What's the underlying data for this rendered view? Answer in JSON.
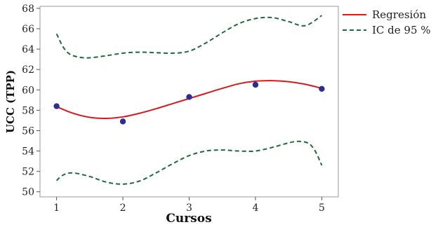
{
  "chart_data": {
    "type": "scatter",
    "xlabel": "Cursos",
    "ylabel": "UCC (TPP)",
    "xlim": [
      0.75,
      5.25
    ],
    "ylim": [
      49.5,
      68.2
    ],
    "xticks": [
      1,
      2,
      3,
      4,
      5
    ],
    "yticks": [
      50,
      52,
      54,
      56,
      58,
      60,
      62,
      64,
      66,
      68
    ],
    "grid": false,
    "legend_position": "right",
    "points": {
      "color": "#2b2e8f",
      "x": [
        1,
        2,
        3,
        4,
        5
      ],
      "y": [
        58.4,
        56.9,
        59.3,
        60.5,
        60.1
      ]
    },
    "series": [
      {
        "name": "Regresión",
        "style": "solid",
        "color": "#d7191c",
        "x": [
          1,
          1.25,
          1.5,
          1.75,
          2,
          2.25,
          2.5,
          2.75,
          3,
          3.25,
          3.5,
          3.75,
          4,
          4.25,
          4.5,
          4.75,
          5
        ],
        "y": [
          58.35,
          57.7,
          57.3,
          57.2,
          57.35,
          57.7,
          58.15,
          58.65,
          59.15,
          59.65,
          60.15,
          60.6,
          60.85,
          60.9,
          60.8,
          60.55,
          60.15
        ]
      },
      {
        "name": "IC de 95 %",
        "style": "dashed",
        "color": "#1e6b3a",
        "x": [
          1,
          1.1,
          1.2,
          1.35,
          1.5,
          1.75,
          2,
          2.25,
          2.5,
          2.75,
          3,
          3.25,
          3.5,
          3.75,
          4,
          4.25,
          4.5,
          4.75,
          5
        ],
        "y": [
          65.5,
          64.2,
          63.5,
          63.2,
          63.15,
          63.35,
          63.6,
          63.7,
          63.65,
          63.6,
          63.8,
          64.6,
          65.6,
          66.5,
          67.0,
          67.1,
          66.7,
          66.3,
          67.3
        ]
      },
      {
        "name": "",
        "style": "dashed",
        "color": "#1e6b3a",
        "x": [
          1,
          1.1,
          1.25,
          1.5,
          1.75,
          2,
          2.25,
          2.5,
          2.75,
          3,
          3.25,
          3.5,
          3.75,
          4,
          4.25,
          4.5,
          4.65,
          4.8,
          4.9,
          5
        ],
        "y": [
          51.1,
          51.65,
          51.85,
          51.5,
          50.95,
          50.75,
          51.05,
          51.85,
          52.75,
          53.55,
          54.0,
          54.1,
          54.0,
          54.0,
          54.35,
          54.8,
          54.95,
          54.75,
          54.0,
          52.6
        ]
      }
    ]
  }
}
